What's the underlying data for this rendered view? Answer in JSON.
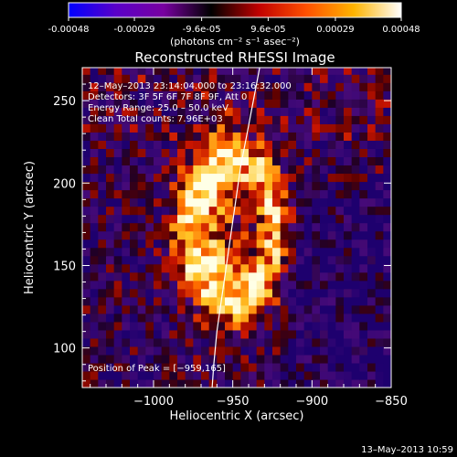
{
  "colorbar": {
    "tick_labels": [
      "-0.00048",
      "-0.00029",
      "-9.6e-05",
      "9.6e-05",
      "0.00029",
      "0.00048"
    ],
    "tick_values": [
      -0.00048,
      -0.00029,
      -9.6e-05,
      9.6e-05,
      0.00029,
      0.00048
    ],
    "range": [
      -0.00048,
      0.00048
    ],
    "units": "(photons cm⁻² s⁻¹ asec⁻²)",
    "colors": [
      "#0000ff",
      "#5a00c8",
      "#7800a0",
      "#000000",
      "#c00000",
      "#ff5000",
      "#ffb400",
      "#ffffff"
    ]
  },
  "chart_data": {
    "type": "heatmap",
    "title": "Reconstructed RHESSI Image",
    "xlabel": "Heliocentric X (arcsec)",
    "ylabel": "Heliocentric Y (arcsec)",
    "xlim": [
      -1045,
      -850
    ],
    "ylim": [
      76,
      270
    ],
    "x_ticks": [
      -1000,
      -950,
      -900,
      -850
    ],
    "x_tick_labels": [
      "−1000",
      "−950",
      "−900",
      "−850"
    ],
    "y_ticks": [
      100,
      150,
      200,
      250
    ],
    "y_tick_labels": [
      "100",
      "150",
      "200",
      "250"
    ],
    "annotations": [
      "12–May–2013 23:14:04.000 to 23:16:32.000",
      "Detectors: 3F 5F 6F 7F 8F 9F, Att 0",
      "Energy Range: 25.0 – 50.0 keV",
      "Clean     Total counts: 7.96E+03"
    ],
    "peak_label": "Position of Peak = [−959,165]",
    "peak": [
      -959,
      165
    ],
    "limb_curve": [
      [
        -933,
        270
      ],
      [
        -937,
        250
      ],
      [
        -941,
        230
      ],
      [
        -945,
        210
      ],
      [
        -948,
        190
      ],
      [
        -951,
        170
      ],
      [
        -954,
        150
      ],
      [
        -957,
        130
      ],
      [
        -960,
        110
      ],
      [
        -962,
        90
      ],
      [
        -963,
        76
      ]
    ]
  },
  "footer": {
    "timestamp": "13–May–2013 10:59"
  }
}
